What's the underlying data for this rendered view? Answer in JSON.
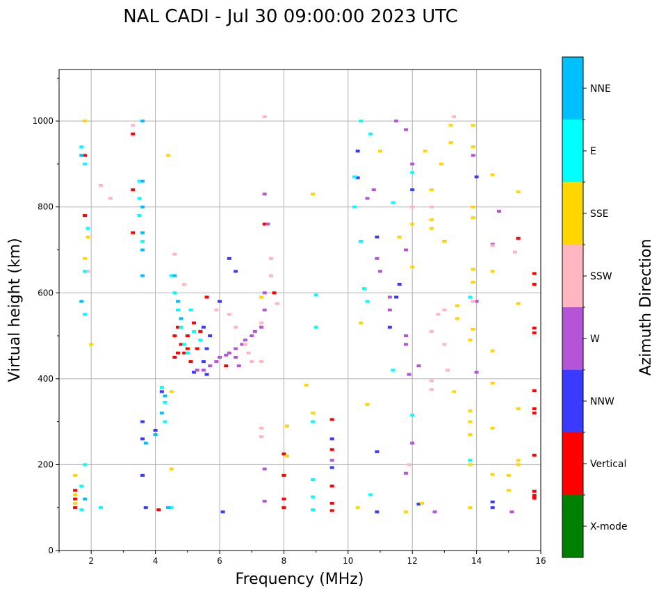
{
  "chart_data": {
    "type": "scatter",
    "title": "NAL CADI - Jul 30 09:00:00 2023 UTC",
    "xlabel": "Frequency (MHz)",
    "ylabel": "Virtual height (km)",
    "xlim": [
      1,
      16
    ],
    "ylim": [
      0,
      1120
    ],
    "xticks": [
      "2",
      "4",
      "6",
      "8",
      "10",
      "12",
      "14",
      "16"
    ],
    "yticks": [
      "0",
      "200",
      "400",
      "600",
      "800",
      "1000"
    ],
    "grid": true,
    "colorbar": {
      "label": "Azimuth Direction",
      "categories": [
        {
          "name": "X-mode",
          "color": "#008000"
        },
        {
          "name": "Vertical",
          "color": "#ff0000"
        },
        {
          "name": "NNW",
          "color": "#3a3aff"
        },
        {
          "name": "W",
          "color": "#b455d8"
        },
        {
          "name": "SSW",
          "color": "#ffb6c1"
        },
        {
          "name": "SSE",
          "color": "#ffd700"
        },
        {
          "name": "E",
          "color": "#00ffff"
        },
        {
          "name": "NNE",
          "color": "#00bfff"
        }
      ]
    },
    "series": [
      {
        "name": "Vertical",
        "points": [
          [
            1.5,
            100
          ],
          [
            1.5,
            120
          ],
          [
            1.5,
            140
          ],
          [
            1.8,
            780
          ],
          [
            1.8,
            920
          ],
          [
            3.3,
            970
          ],
          [
            3.3,
            840
          ],
          [
            3.3,
            740
          ],
          [
            4.1,
            95
          ],
          [
            4.6,
            500
          ],
          [
            4.7,
            520
          ],
          [
            4.8,
            480
          ],
          [
            4.9,
            460
          ],
          [
            5.0,
            500
          ],
          [
            5.1,
            440
          ],
          [
            5.2,
            530
          ],
          [
            5.3,
            470
          ],
          [
            4.6,
            450
          ],
          [
            4.7,
            460
          ],
          [
            5.0,
            470
          ],
          [
            5.4,
            510
          ],
          [
            6.2,
            430
          ],
          [
            5.6,
            590
          ],
          [
            7.4,
            760
          ],
          [
            7.7,
            600
          ],
          [
            8.0,
            225
          ],
          [
            8.0,
            175
          ],
          [
            8.0,
            120
          ],
          [
            8.0,
            100
          ],
          [
            9.5,
            305
          ],
          [
            9.5,
            235
          ],
          [
            9.5,
            150
          ],
          [
            9.5,
            110
          ],
          [
            9.5,
            93
          ],
          [
            15.8,
            645
          ],
          [
            15.8,
            620
          ],
          [
            15.8,
            518
          ],
          [
            15.8,
            507
          ],
          [
            15.8,
            372
          ],
          [
            15.8,
            330
          ],
          [
            15.8,
            320
          ],
          [
            15.8,
            222
          ],
          [
            15.8,
            138
          ],
          [
            15.8,
            128
          ],
          [
            15.8,
            122
          ],
          [
            15.3,
            727
          ]
        ]
      },
      {
        "name": "NNW",
        "points": [
          [
            3.6,
            300
          ],
          [
            3.6,
            260
          ],
          [
            3.6,
            175
          ],
          [
            3.7,
            100
          ],
          [
            4.0,
            280
          ],
          [
            4.2,
            370
          ],
          [
            5.2,
            415
          ],
          [
            5.5,
            440
          ],
          [
            5.6,
            470
          ],
          [
            5.7,
            500
          ],
          [
            5.5,
            520
          ],
          [
            5.6,
            410
          ],
          [
            6.0,
            580
          ],
          [
            6.3,
            680
          ],
          [
            6.5,
            650
          ],
          [
            6.1,
            90
          ],
          [
            9.5,
            260
          ],
          [
            9.5,
            193
          ],
          [
            10.3,
            930
          ],
          [
            10.3,
            868
          ],
          [
            10.4,
            720
          ],
          [
            10.9,
            730
          ],
          [
            10.9,
            90
          ],
          [
            11.3,
            520
          ],
          [
            11.6,
            620
          ],
          [
            12.0,
            840
          ],
          [
            12.2,
            108
          ],
          [
            13.0,
            720
          ],
          [
            14.0,
            870
          ],
          [
            14.5,
            113
          ],
          [
            14.5,
            100
          ],
          [
            10.9,
            230
          ],
          [
            11.5,
            590
          ]
        ]
      },
      {
        "name": "W",
        "points": [
          [
            5.3,
            420
          ],
          [
            5.5,
            420
          ],
          [
            5.7,
            430
          ],
          [
            5.9,
            440
          ],
          [
            6.0,
            450
          ],
          [
            6.2,
            455
          ],
          [
            6.3,
            460
          ],
          [
            6.5,
            470
          ],
          [
            6.7,
            480
          ],
          [
            6.8,
            490
          ],
          [
            7.0,
            500
          ],
          [
            7.1,
            510
          ],
          [
            7.3,
            520
          ],
          [
            6.5,
            450
          ],
          [
            6.6,
            430
          ],
          [
            7.4,
            560
          ],
          [
            7.4,
            600
          ],
          [
            7.5,
            760
          ],
          [
            7.4,
            830
          ],
          [
            7.4,
            190
          ],
          [
            7.4,
            115
          ],
          [
            9.5,
            210
          ],
          [
            10.6,
            820
          ],
          [
            10.8,
            840
          ],
          [
            10.9,
            680
          ],
          [
            11.0,
            650
          ],
          [
            11.3,
            560
          ],
          [
            11.3,
            590
          ],
          [
            11.5,
            1000
          ],
          [
            11.8,
            980
          ],
          [
            11.8,
            700
          ],
          [
            11.8,
            500
          ],
          [
            11.8,
            480
          ],
          [
            11.9,
            410
          ],
          [
            12.0,
            900
          ],
          [
            12.2,
            430
          ],
          [
            13.9,
            920
          ],
          [
            14.0,
            580
          ],
          [
            14.7,
            790
          ],
          [
            14.5,
            713
          ],
          [
            14.0,
            415
          ],
          [
            15.1,
            90
          ],
          [
            12.7,
            90
          ],
          [
            12.0,
            250
          ],
          [
            11.8,
            180
          ]
        ]
      },
      {
        "name": "SSW",
        "points": [
          [
            1.9,
            650
          ],
          [
            2.3,
            850
          ],
          [
            2.6,
            820
          ],
          [
            3.3,
            990
          ],
          [
            4.6,
            690
          ],
          [
            4.9,
            620
          ],
          [
            5.9,
            560
          ],
          [
            6.3,
            550
          ],
          [
            6.5,
            520
          ],
          [
            6.8,
            480
          ],
          [
            6.9,
            460
          ],
          [
            7.0,
            440
          ],
          [
            7.3,
            440
          ],
          [
            7.3,
            530
          ],
          [
            7.3,
            285
          ],
          [
            7.3,
            265
          ],
          [
            7.4,
            1010
          ],
          [
            7.6,
            640
          ],
          [
            7.8,
            575
          ],
          [
            7.6,
            680
          ],
          [
            12.0,
            800
          ],
          [
            12.6,
            800
          ],
          [
            12.6,
            510
          ],
          [
            12.6,
            395
          ],
          [
            12.6,
            375
          ],
          [
            13.0,
            560
          ],
          [
            13.0,
            480
          ],
          [
            13.1,
            420
          ],
          [
            13.3,
            1010
          ],
          [
            13.9,
            580
          ],
          [
            14.5,
            710
          ],
          [
            15.2,
            695
          ],
          [
            11.9,
            200
          ],
          [
            12.8,
            550
          ]
        ]
      },
      {
        "name": "SSE",
        "points": [
          [
            1.5,
            175
          ],
          [
            1.5,
            130
          ],
          [
            1.5,
            110
          ],
          [
            1.8,
            680
          ],
          [
            1.8,
            1000
          ],
          [
            1.9,
            730
          ],
          [
            2.0,
            480
          ],
          [
            4.5,
            370
          ],
          [
            4.5,
            190
          ],
          [
            4.4,
            920
          ],
          [
            7.3,
            590
          ],
          [
            8.1,
            290
          ],
          [
            8.1,
            220
          ],
          [
            8.7,
            385
          ],
          [
            8.9,
            830
          ],
          [
            8.9,
            320
          ],
          [
            10.4,
            530
          ],
          [
            10.6,
            340
          ],
          [
            11.0,
            930
          ],
          [
            11.6,
            730
          ],
          [
            12.0,
            760
          ],
          [
            12.0,
            660
          ],
          [
            12.4,
            930
          ],
          [
            12.6,
            840
          ],
          [
            12.6,
            770
          ],
          [
            12.6,
            750
          ],
          [
            12.9,
            900
          ],
          [
            13.0,
            720
          ],
          [
            13.2,
            990
          ],
          [
            13.2,
            950
          ],
          [
            13.3,
            370
          ],
          [
            13.4,
            570
          ],
          [
            13.4,
            540
          ],
          [
            13.9,
            990
          ],
          [
            13.9,
            940
          ],
          [
            13.9,
            800
          ],
          [
            13.9,
            775
          ],
          [
            13.9,
            655
          ],
          [
            13.9,
            625
          ],
          [
            13.9,
            515
          ],
          [
            13.8,
            490
          ],
          [
            13.8,
            325
          ],
          [
            13.8,
            300
          ],
          [
            13.8,
            270
          ],
          [
            13.8,
            200
          ],
          [
            13.8,
            100
          ],
          [
            14.5,
            875
          ],
          [
            14.5,
            650
          ],
          [
            14.5,
            465
          ],
          [
            14.5,
            390
          ],
          [
            14.5,
            285
          ],
          [
            14.5,
            177
          ],
          [
            15.0,
            175
          ],
          [
            15.0,
            140
          ],
          [
            15.3,
            835
          ],
          [
            15.3,
            575
          ],
          [
            15.3,
            330
          ],
          [
            15.3,
            210
          ],
          [
            15.3,
            200
          ],
          [
            12.3,
            110
          ],
          [
            11.8,
            90
          ],
          [
            10.3,
            100
          ]
        ]
      },
      {
        "name": "E",
        "points": [
          [
            1.7,
            940
          ],
          [
            1.8,
            900
          ],
          [
            1.9,
            750
          ],
          [
            1.8,
            650
          ],
          [
            1.8,
            550
          ],
          [
            1.8,
            200
          ],
          [
            1.7,
            150
          ],
          [
            1.7,
            95
          ],
          [
            2.3,
            100
          ],
          [
            3.5,
            860
          ],
          [
            3.5,
            820
          ],
          [
            3.5,
            780
          ],
          [
            3.6,
            720
          ],
          [
            4.5,
            640
          ],
          [
            4.6,
            600
          ],
          [
            4.7,
            560
          ],
          [
            4.8,
            520
          ],
          [
            4.9,
            480
          ],
          [
            5.0,
            460
          ],
          [
            5.1,
            560
          ],
          [
            5.2,
            510
          ],
          [
            5.4,
            490
          ],
          [
            4.3,
            300
          ],
          [
            4.3,
            345
          ],
          [
            4.2,
            380
          ],
          [
            4.5,
            100
          ],
          [
            9.0,
            595
          ],
          [
            9.0,
            520
          ],
          [
            8.9,
            300
          ],
          [
            8.9,
            165
          ],
          [
            8.9,
            125
          ],
          [
            8.9,
            95
          ],
          [
            10.2,
            870
          ],
          [
            10.2,
            800
          ],
          [
            10.4,
            1000
          ],
          [
            10.4,
            720
          ],
          [
            10.5,
            610
          ],
          [
            10.6,
            580
          ],
          [
            10.7,
            970
          ],
          [
            10.7,
            130
          ],
          [
            11.4,
            810
          ],
          [
            11.4,
            420
          ],
          [
            12.0,
            880
          ],
          [
            12.0,
            315
          ],
          [
            13.8,
            210
          ],
          [
            13.8,
            590
          ]
        ]
      },
      {
        "name": "NNE",
        "points": [
          [
            3.6,
            1000
          ],
          [
            3.6,
            860
          ],
          [
            3.6,
            800
          ],
          [
            3.6,
            740
          ],
          [
            3.6,
            700
          ],
          [
            3.6,
            640
          ],
          [
            3.7,
            250
          ],
          [
            4.0,
            270
          ],
          [
            4.3,
            360
          ],
          [
            4.2,
            320
          ],
          [
            4.4,
            100
          ],
          [
            4.6,
            640
          ],
          [
            4.7,
            580
          ],
          [
            4.8,
            540
          ],
          [
            1.7,
            920
          ],
          [
            1.7,
            580
          ],
          [
            1.8,
            120
          ]
        ]
      },
      {
        "name": "X-mode",
        "points": []
      }
    ]
  }
}
